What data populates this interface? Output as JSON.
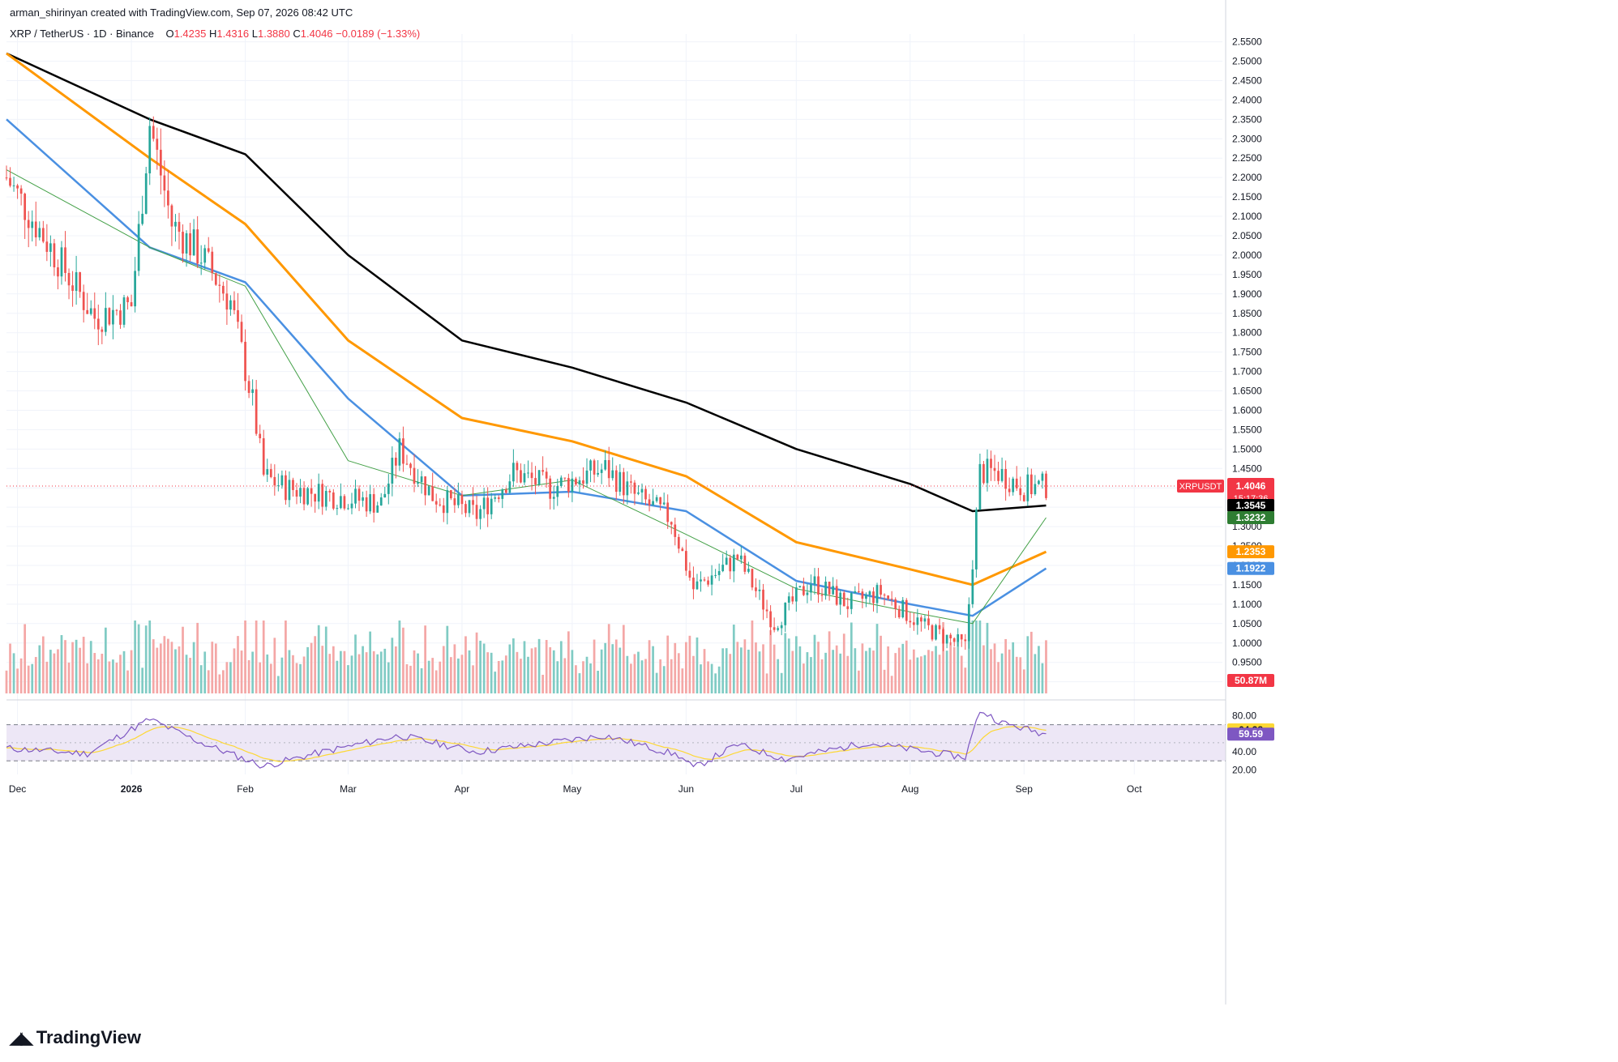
{
  "header": {
    "attribution": "arman_shirinyan created with TradingView.com, Sep 07, 2026 08:42 UTC",
    "symbol": "XRP / TetherUS · 1D · Binance",
    "open_label": "O",
    "open": "1.4235",
    "high_label": "H",
    "high": "1.4316",
    "low_label": "L",
    "low": "1.3880",
    "close_label": "C",
    "close": "1.4046",
    "change": "−0.0189 (−1.33%)"
  },
  "footer": {
    "brand": "TradingView"
  },
  "colors": {
    "up": "#26a69a",
    "down": "#ef5350",
    "vol_up": "#80cbc4",
    "vol_down": "#f4a7a6",
    "ma_black": "#000000",
    "ma_orange": "#ff9800",
    "ma_blue": "#4a90e2",
    "ma_green": "#43a047",
    "rsi": "#7e57c2",
    "rsi_ma": "#fdd835",
    "rsi_band": "#ede7f6"
  },
  "chart_data": [
    {
      "type": "candlestick",
      "title": "XRP / TetherUS · 1D · Binance",
      "y_axis_ticks": [
        "2.5500",
        "2.5000",
        "2.4500",
        "2.4000",
        "2.3500",
        "2.3000",
        "2.2500",
        "2.2000",
        "2.1500",
        "2.1000",
        "2.0500",
        "2.0000",
        "1.9500",
        "1.9000",
        "1.8500",
        "1.8000",
        "1.7500",
        "1.7000",
        "1.6500",
        "1.6000",
        "1.5500",
        "1.5000",
        "1.4500",
        "1.4000",
        "1.3500",
        "1.3000",
        "1.2500",
        "1.2000",
        "1.1500",
        "1.1000",
        "1.0500",
        "1.0000",
        "0.9500",
        "0.9000"
      ],
      "ylim": [
        0.87,
        2.57
      ],
      "x_axis_ticks": [
        "Dec",
        "2026",
        "Feb",
        "Mar",
        "Apr",
        "May",
        "Jun",
        "Jul",
        "Aug",
        "Sep",
        "Oct"
      ],
      "x_tick_dates": [
        "2025-12-01",
        "2026-01-01",
        "2026-02-01",
        "2026-03-01",
        "2026-04-01",
        "2026-05-01",
        "2026-06-01",
        "2026-07-01",
        "2026-08-01",
        "2026-09-01",
        "2026-10-01"
      ],
      "date_range": [
        "2025-11-28",
        "2026-10-25"
      ],
      "key_points": [
        {
          "date": "2025-11-28",
          "close": 2.2
        },
        {
          "date": "2025-12-10",
          "close": 2.02
        },
        {
          "date": "2025-12-22",
          "close": 1.84
        },
        {
          "date": "2026-01-01",
          "close": 1.87
        },
        {
          "date": "2026-01-06",
          "close": 2.34
        },
        {
          "date": "2026-01-12",
          "close": 2.08
        },
        {
          "date": "2026-01-20",
          "close": 2.0
        },
        {
          "date": "2026-01-28",
          "close": 1.88
        },
        {
          "date": "2026-02-03",
          "close": 1.62
        },
        {
          "date": "2026-02-06",
          "close": 1.43
        },
        {
          "date": "2026-02-12",
          "close": 1.4
        },
        {
          "date": "2026-02-25",
          "close": 1.38
        },
        {
          "date": "2026-03-10",
          "close": 1.36
        },
        {
          "date": "2026-03-15",
          "close": 1.5
        },
        {
          "date": "2026-03-24",
          "close": 1.38
        },
        {
          "date": "2026-04-05",
          "close": 1.33
        },
        {
          "date": "2026-04-15",
          "close": 1.44
        },
        {
          "date": "2026-04-25",
          "close": 1.4
        },
        {
          "date": "2026-05-10",
          "close": 1.45
        },
        {
          "date": "2026-05-18",
          "close": 1.38
        },
        {
          "date": "2026-05-28",
          "close": 1.32
        },
        {
          "date": "2026-06-03",
          "close": 1.14
        },
        {
          "date": "2026-06-15",
          "close": 1.22
        },
        {
          "date": "2026-06-25",
          "close": 1.05
        },
        {
          "date": "2026-07-05",
          "close": 1.16
        },
        {
          "date": "2026-07-15",
          "close": 1.1
        },
        {
          "date": "2026-07-24",
          "close": 1.13
        },
        {
          "date": "2026-08-05",
          "close": 1.04
        },
        {
          "date": "2026-08-16",
          "close": 0.99
        },
        {
          "date": "2026-08-20",
          "close": 1.44
        },
        {
          "date": "2026-08-25",
          "close": 1.44
        },
        {
          "date": "2026-09-01",
          "close": 1.4
        },
        {
          "date": "2026-09-07",
          "close": 1.4046
        }
      ],
      "moving_averages": [
        {
          "color": "black",
          "last": "1.3545",
          "points": [
            {
              "date": "2025-11-28",
              "v": 2.52
            },
            {
              "date": "2026-01-06",
              "v": 2.35
            },
            {
              "date": "2026-02-01",
              "v": 2.26
            },
            {
              "date": "2026-03-01",
              "v": 2.0
            },
            {
              "date": "2026-04-01",
              "v": 1.78
            },
            {
              "date": "2026-05-01",
              "v": 1.71
            },
            {
              "date": "2026-06-01",
              "v": 1.62
            },
            {
              "date": "2026-07-01",
              "v": 1.5
            },
            {
              "date": "2026-08-01",
              "v": 1.41
            },
            {
              "date": "2026-08-18",
              "v": 1.34
            },
            {
              "date": "2026-09-07",
              "v": 1.3545
            }
          ]
        },
        {
          "color": "orange",
          "last": "1.2353",
          "points": [
            {
              "date": "2025-11-28",
              "v": 2.52
            },
            {
              "date": "2026-01-06",
              "v": 2.25
            },
            {
              "date": "2026-02-01",
              "v": 2.08
            },
            {
              "date": "2026-03-01",
              "v": 1.78
            },
            {
              "date": "2026-04-01",
              "v": 1.58
            },
            {
              "date": "2026-05-01",
              "v": 1.52
            },
            {
              "date": "2026-06-01",
              "v": 1.43
            },
            {
              "date": "2026-07-01",
              "v": 1.26
            },
            {
              "date": "2026-08-01",
              "v": 1.19
            },
            {
              "date": "2026-08-18",
              "v": 1.15
            },
            {
              "date": "2026-09-07",
              "v": 1.2353
            }
          ]
        },
        {
          "color": "blue",
          "last": "1.1922",
          "points": [
            {
              "date": "2025-11-28",
              "v": 2.35
            },
            {
              "date": "2026-01-06",
              "v": 2.02
            },
            {
              "date": "2026-02-01",
              "v": 1.93
            },
            {
              "date": "2026-03-01",
              "v": 1.63
            },
            {
              "date": "2026-04-01",
              "v": 1.38
            },
            {
              "date": "2026-05-01",
              "v": 1.39
            },
            {
              "date": "2026-06-01",
              "v": 1.34
            },
            {
              "date": "2026-07-01",
              "v": 1.16
            },
            {
              "date": "2026-08-01",
              "v": 1.1
            },
            {
              "date": "2026-08-18",
              "v": 1.07
            },
            {
              "date": "2026-09-07",
              "v": 1.1922
            }
          ]
        },
        {
          "color": "green",
          "last": "1.3232",
          "points": [
            {
              "date": "2025-11-28",
              "v": 2.22
            },
            {
              "date": "2026-01-06",
              "v": 2.02
            },
            {
              "date": "2026-02-01",
              "v": 1.92
            },
            {
              "date": "2026-03-01",
              "v": 1.47
            },
            {
              "date": "2026-04-01",
              "v": 1.38
            },
            {
              "date": "2026-05-01",
              "v": 1.42
            },
            {
              "date": "2026-06-01",
              "v": 1.28
            },
            {
              "date": "2026-07-01",
              "v": 1.14
            },
            {
              "date": "2026-08-01",
              "v": 1.08
            },
            {
              "date": "2026-08-18",
              "v": 1.05
            },
            {
              "date": "2026-09-07",
              "v": 1.3232
            }
          ]
        }
      ],
      "price_labels": [
        {
          "text": "XRPUSDT",
          "value": "1.4046",
          "countdown": "15:17:36",
          "color": "#f23645"
        },
        {
          "text": "",
          "value": "1.3545",
          "color": "#000000"
        },
        {
          "text": "",
          "value": "1.3232",
          "color": "#2e7d32"
        },
        {
          "text": "",
          "value": "1.2353",
          "color": "#ff9800"
        },
        {
          "text": "",
          "value": "1.1922",
          "color": "#4a90e2"
        }
      ],
      "volume_last": "50.87M"
    },
    {
      "type": "line",
      "indicator": "RSI",
      "y_axis_ticks": [
        "80.00",
        "40.00",
        "20.00"
      ],
      "ylim": [
        15,
        92
      ],
      "bands": [
        70,
        30
      ],
      "last_rsi_ma": "64.28",
      "last_rsi": "59.59",
      "key_points": [
        {
          "date": "2025-11-28",
          "v": 44
        },
        {
          "date": "2025-12-20",
          "v": 38
        },
        {
          "date": "2026-01-06",
          "v": 76
        },
        {
          "date": "2026-01-20",
          "v": 50
        },
        {
          "date": "2026-02-06",
          "v": 24
        },
        {
          "date": "2026-02-20",
          "v": 38
        },
        {
          "date": "2026-03-15",
          "v": 58
        },
        {
          "date": "2026-04-05",
          "v": 40
        },
        {
          "date": "2026-05-10",
          "v": 58
        },
        {
          "date": "2026-05-30",
          "v": 36
        },
        {
          "date": "2026-06-03",
          "v": 22
        },
        {
          "date": "2026-06-15",
          "v": 48
        },
        {
          "date": "2026-06-28",
          "v": 32
        },
        {
          "date": "2026-07-20",
          "v": 50
        },
        {
          "date": "2026-08-16",
          "v": 34
        },
        {
          "date": "2026-08-20",
          "v": 86
        },
        {
          "date": "2026-08-26",
          "v": 72
        },
        {
          "date": "2026-09-07",
          "v": 59.59
        }
      ]
    }
  ]
}
